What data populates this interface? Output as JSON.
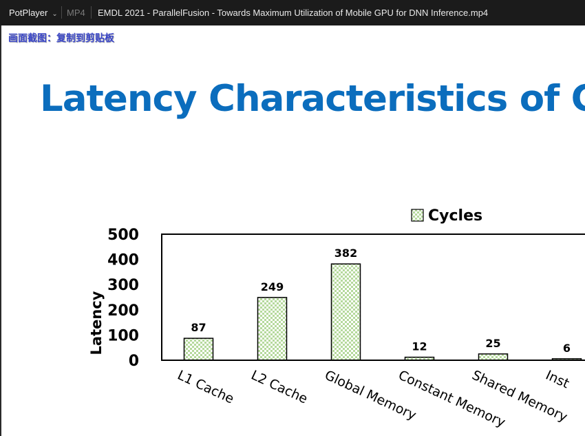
{
  "titlebar": {
    "app_name": "PotPlayer",
    "format": "MP4",
    "title": "EMDL 2021 - ParallelFusion - Towards Maximum Utilization of Mobile GPU for DNN Inference.mp4"
  },
  "osd_message": "画面截图：复制到剪贴板",
  "slide": {
    "title": "Latency Characteristics of GPU"
  },
  "colors": {
    "title_blue": "#0b6dbd",
    "bar_fill": "#b5d99c",
    "titlebar_bg": "#1b1b1b"
  },
  "chart_data": {
    "type": "bar",
    "categories": [
      "L1 Cache",
      "L2 Cache",
      "Global Memory",
      "Constant Memory",
      "Shared Memory",
      "Inst"
    ],
    "series": [
      {
        "name": "Cycles",
        "values": [
          87,
          249,
          382,
          12,
          25,
          6
        ]
      }
    ],
    "ylabel": "Latency",
    "ylim": [
      0,
      500
    ],
    "yticks": [
      0,
      100,
      200,
      300,
      400,
      500
    ],
    "data_labels": true,
    "legend": "top",
    "grid": false
  }
}
